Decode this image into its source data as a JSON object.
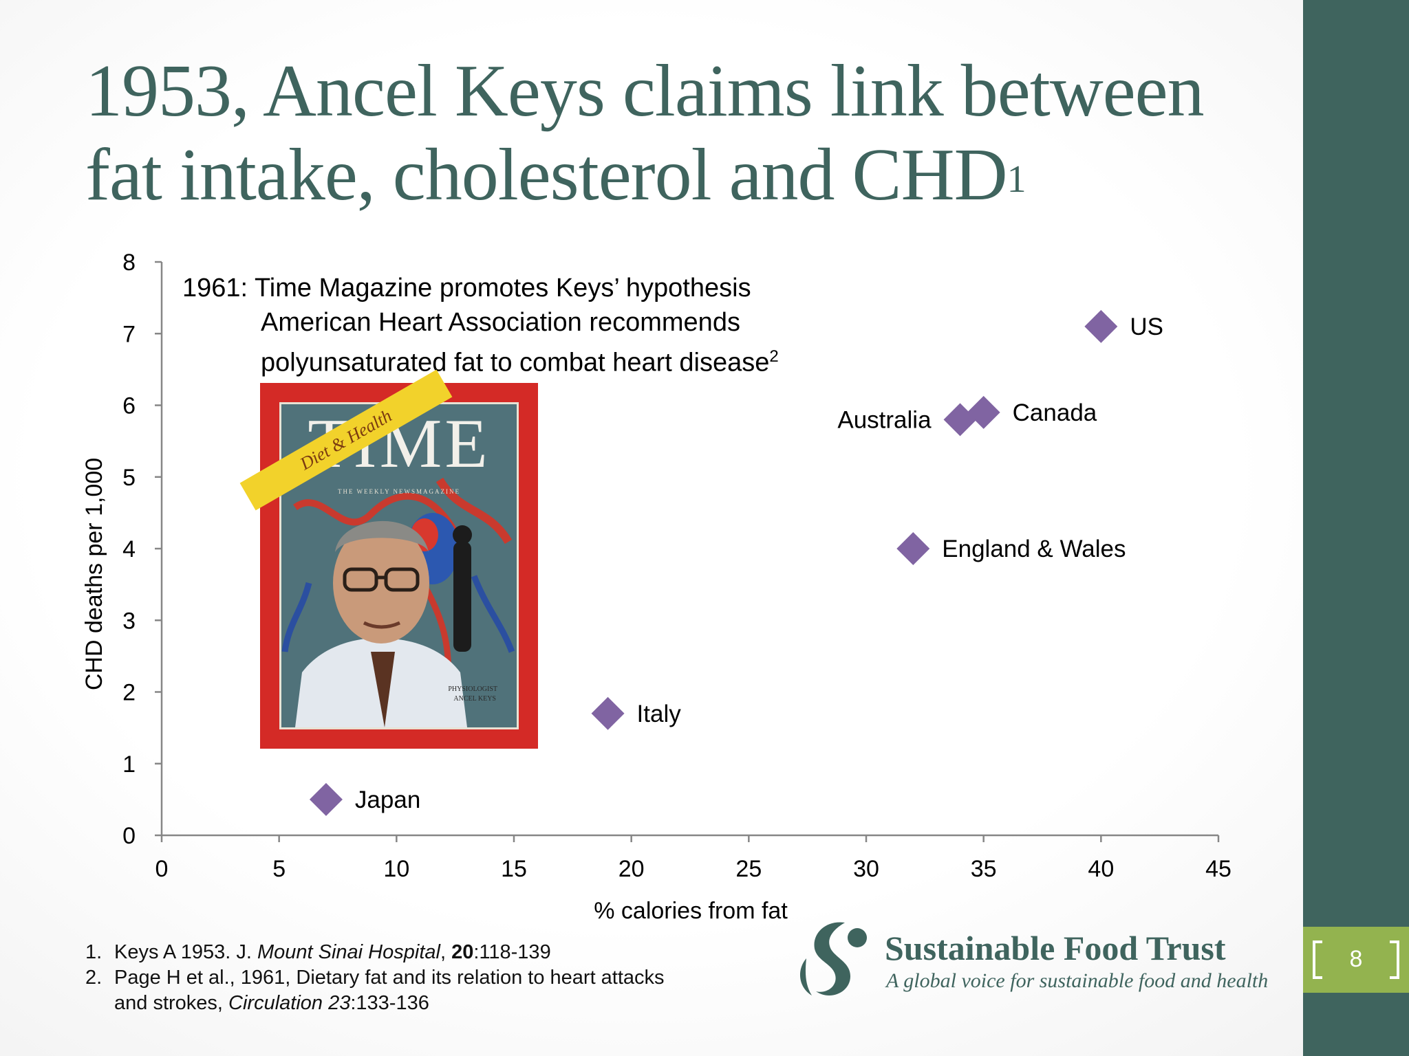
{
  "slide": {
    "title_line1": "1953, Ancel Keys claims link between",
    "title_line2": "fat intake, cholesterol and CHD",
    "title_sup": "1",
    "page_number": "8"
  },
  "annotation": {
    "line1": "1961: Time Magazine promotes Keys’ hypothesis",
    "line2": "American Heart Association recommends",
    "line3": "polyunsaturated fat to combat heart disease",
    "line3_sup": "2"
  },
  "magazine_cover": {
    "masthead": "TIME",
    "banner": "Diet & Health",
    "subtitle": "THE WEEKLY NEWSMAGAZINE",
    "caption_line1": "PHYSIOLOGIST",
    "caption_line2": "ANCEL KEYS"
  },
  "chart_data": {
    "type": "scatter",
    "xlabel": "% calories from fat",
    "ylabel": "CHD deaths per 1,000",
    "xlim": [
      0,
      45
    ],
    "ylim": [
      0,
      8
    ],
    "xticks": [
      0,
      5,
      10,
      15,
      20,
      25,
      30,
      35,
      40,
      45
    ],
    "yticks": [
      0,
      1,
      2,
      3,
      4,
      5,
      6,
      7,
      8
    ],
    "grid": false,
    "marker_color": "#8064a2",
    "points": [
      {
        "label": "Japan",
        "x": 7,
        "y": 0.5
      },
      {
        "label": "Italy",
        "x": 19,
        "y": 1.7
      },
      {
        "label": "England & Wales",
        "x": 32,
        "y": 4.0
      },
      {
        "label": "Australia",
        "x": 34,
        "y": 5.8
      },
      {
        "label": "Canada",
        "x": 35,
        "y": 5.9
      },
      {
        "label": "US",
        "x": 40,
        "y": 7.1
      }
    ]
  },
  "footnotes": [
    {
      "num": "1.",
      "pre": "Keys A 1953. J. ",
      "italic": "Mount Sinai Hospital",
      "mid": ", ",
      "bold": "20",
      "post": ":118-139"
    },
    {
      "num": "2.",
      "line1": "Page H et al., 1961, Dietary fat and its relation to heart attacks",
      "line2_pre": "and strokes, ",
      "line2_italic": "Circulation 23",
      "line2_post": ":133-136"
    }
  ],
  "logo": {
    "name": "Sustainable Food Trust",
    "tagline": "A global voice for sustainable food and health"
  },
  "colors": {
    "accent": "#3f645e",
    "badge": "#93b34f",
    "marker": "#8064a2",
    "cover_red": "#d42a26"
  }
}
